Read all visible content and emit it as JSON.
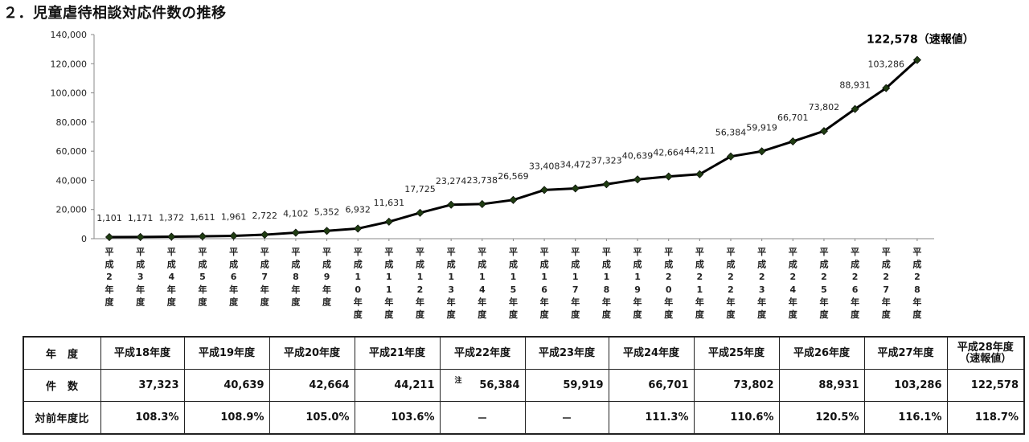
{
  "title": "２．児童虐待相談対応件数の推移",
  "chart_data": {
    "type": "line",
    "ylim": [
      0,
      140000
    ],
    "yticks": [
      "0",
      "20,000",
      "40,000",
      "60,000",
      "80,000",
      "100,000",
      "120,000",
      "140,000"
    ],
    "categories": [
      "平成2年度",
      "平成3年度",
      "平成4年度",
      "平成5年度",
      "平成6年度",
      "平成7年度",
      "平成8年度",
      "平成9年度",
      "平成10年度",
      "平成11年度",
      "平成12年度",
      "平成13年度",
      "平成14年度",
      "平成15年度",
      "平成16年度",
      "平成17年度",
      "平成18年度",
      "平成19年度",
      "平成20年度",
      "平成21年度",
      "平成22年度",
      "平成23年度",
      "平成24年度",
      "平成25年度",
      "平成26年度",
      "平成27年度",
      "平成28年度"
    ],
    "values": [
      1101,
      1171,
      1372,
      1611,
      1961,
      2722,
      4102,
      5352,
      6932,
      11631,
      17725,
      23274,
      23738,
      26569,
      33408,
      34472,
      37323,
      40639,
      42664,
      44211,
      56384,
      59919,
      66701,
      73802,
      88931,
      103286,
      122578
    ],
    "data_labels": [
      "1,101",
      "1,171",
      "1,372",
      "1,611",
      "1,961",
      "2,722",
      "4,102",
      "5,352",
      "6,932",
      "11,631",
      "17,725",
      "23,274",
      "23,738",
      "26,569",
      "33,408",
      "34,472",
      "37,323",
      "40,639",
      "42,664",
      "44,211",
      "56,384",
      "59,919",
      "66,701",
      "73,802",
      "88,931",
      "103,286",
      "122,578（速報値）"
    ],
    "grid": false,
    "line_color": "#000000",
    "marker_color": "#1f3b12"
  },
  "table": {
    "header_label": "年　度",
    "years": [
      "平成18年度",
      "平成19年度",
      "平成20年度",
      "平成21年度",
      "平成22年度",
      "平成23年度",
      "平成24年度",
      "平成25年度",
      "平成26年度",
      "平成27年度"
    ],
    "last_year_line1": "平成28年度",
    "last_year_line2": "（速報値）",
    "count_label": "件　数",
    "counts": [
      "37,323",
      "40,639",
      "42,664",
      "44,211",
      "56,384",
      "59,919",
      "66,701",
      "73,802",
      "88,931",
      "103,286",
      "122,578"
    ],
    "note_mark": "注",
    "ratio_label": "対前年度比",
    "ratios": [
      "108.3%",
      "108.9%",
      "105.0%",
      "103.6%",
      "－",
      "－",
      "111.3%",
      "110.6%",
      "120.5%",
      "116.1%",
      "118.7%"
    ]
  }
}
